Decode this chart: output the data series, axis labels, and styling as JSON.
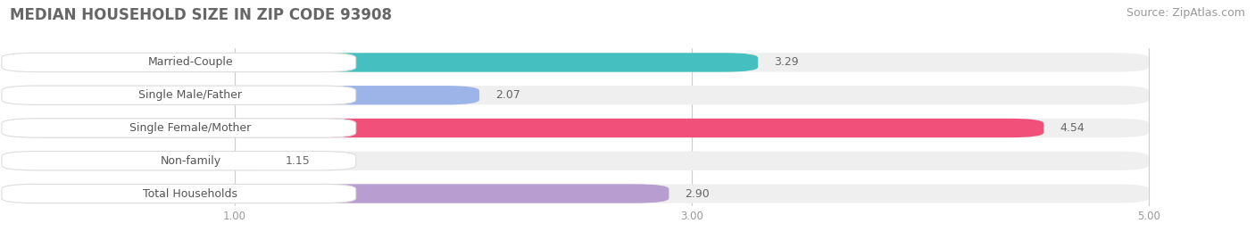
{
  "title": "MEDIAN HOUSEHOLD SIZE IN ZIP CODE 93908",
  "source": "Source: ZipAtlas.com",
  "categories": [
    "Married-Couple",
    "Single Male/Father",
    "Single Female/Mother",
    "Non-family",
    "Total Households"
  ],
  "values": [
    3.29,
    2.07,
    4.54,
    1.15,
    2.9
  ],
  "bar_colors": [
    "#45BFBF",
    "#9DB4E8",
    "#F0507A",
    "#F5C888",
    "#B89ED0"
  ],
  "bar_bg_color": "#EFEFEF",
  "label_bg_color": "#FFFFFF",
  "label_border_color": "#DDDDDD",
  "xlim_left": 0.0,
  "xlim_right": 5.3,
  "x_axis_min": 0.0,
  "x_axis_max": 5.0,
  "xticks": [
    1.0,
    3.0,
    5.0
  ],
  "title_fontsize": 12,
  "source_fontsize": 9,
  "category_fontsize": 9,
  "value_fontsize": 9,
  "background_color": "#FFFFFF",
  "grid_color": "#CCCCCC",
  "title_color": "#666666",
  "source_color": "#999999",
  "category_color": "#555555",
  "value_color": "#666666",
  "tick_color": "#999999"
}
